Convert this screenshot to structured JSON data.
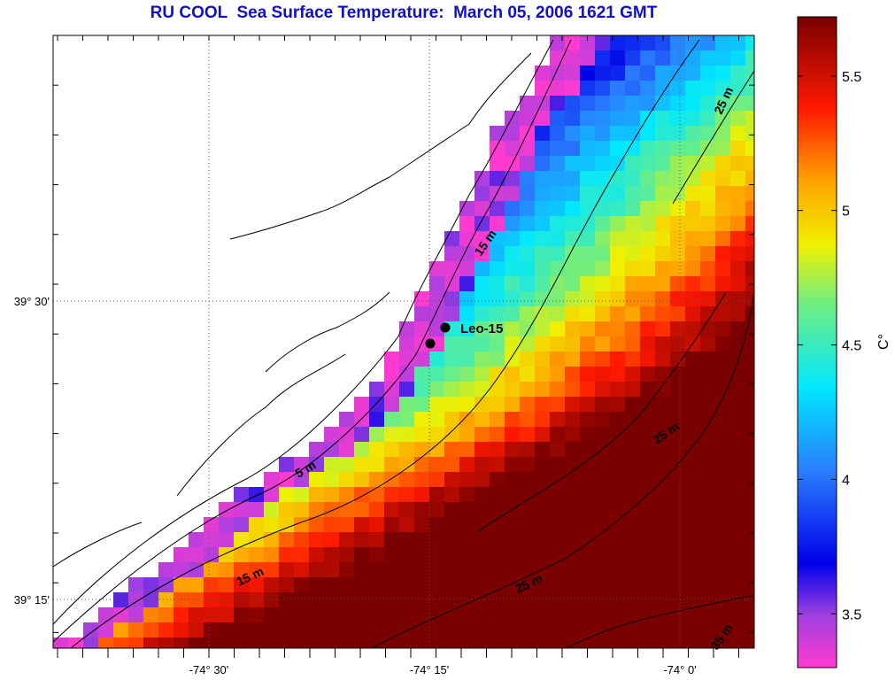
{
  "title": "RU COOL  Sea Surface Temperature:  March 05, 2006 1621 GMT",
  "map": {
    "lon_tick_labels": [
      "-74° 30'",
      "-74° 15'",
      "-74° 0'"
    ],
    "lat_tick_labels": [
      "39° 30'",
      "39° 15'"
    ],
    "station": {
      "label": "Leo-15"
    },
    "contour_labels": [
      "5 m",
      "15 m",
      "15 m",
      "25 m",
      "25 m",
      "25 m",
      "35 m"
    ]
  },
  "colorbar": {
    "unit_label": "C°",
    "tick_labels": [
      "3.5",
      "4",
      "4.5",
      "5",
      "5.5"
    ],
    "range": [
      3.3,
      5.72
    ]
  },
  "colors": {
    "title": "#1010c8",
    "land": "#ffffff"
  }
}
